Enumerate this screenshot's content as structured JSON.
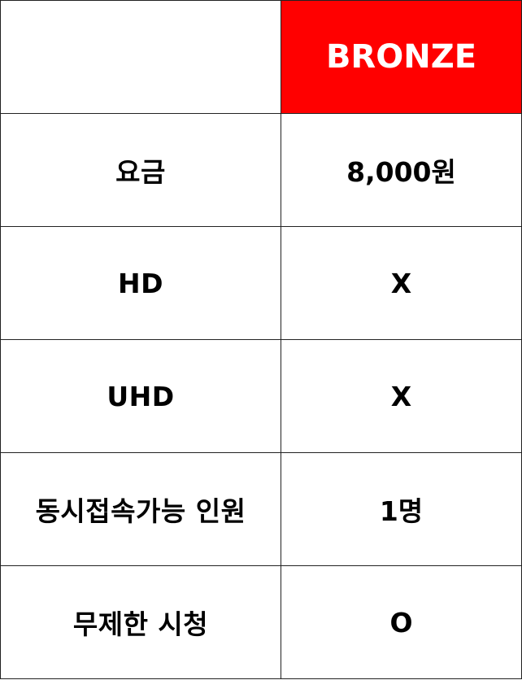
{
  "table": {
    "header": {
      "label": "",
      "plan_name": "BRONZE",
      "plan_color": "#ff0000"
    },
    "rows": [
      {
        "label": "요금",
        "value": "8,000원"
      },
      {
        "label": "HD",
        "value": "X"
      },
      {
        "label": "UHD",
        "value": "X"
      },
      {
        "label": "동시접속가능 인원",
        "value": "1명"
      },
      {
        "label": "무제한 시청",
        "value": "O"
      }
    ]
  }
}
